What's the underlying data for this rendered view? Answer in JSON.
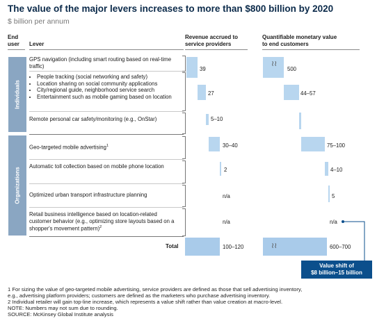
{
  "header": {
    "title": "The value of the major levers increases to more than $800 billion by 2020",
    "subtitle": "$ billion per annum"
  },
  "columns": {
    "end_user": [
      "End",
      "user"
    ],
    "lever": "Lever",
    "revenue": [
      "Revenue accrued to",
      "service providers"
    ],
    "value": [
      "Quantifiable monetary value",
      "to end customers"
    ]
  },
  "groups": {
    "individuals": "Individuals",
    "organizations": "Organizations"
  },
  "levers": {
    "gps": "GPS navigation (including smart routing based on real-time traffic)",
    "bundle": [
      "People tracking (social networking and safety)",
      "Location sharing on social community applications",
      "City/regional guide, neighborhood service search",
      "Entertainment such as mobile gaming based on location"
    ],
    "remote": "Remote personal car safety/monitoring (e.g., OnStar)",
    "geo_prefix": "Geo-targeted mobile advertising",
    "geo_sup": "1",
    "toll": "Automatic toll collection based on mobile phone location",
    "transport": "Optimized urban transport infrastructure planning",
    "retail_prefix": "Retail business intelligence based on location-related customer behavior (e.g., optimizing store layouts based on a shopper's movement pattern)",
    "retail_sup": "2",
    "total": "Total"
  },
  "chart_data": {
    "type": "waterfall",
    "title": "The value of the major levers increases to more than $800 billion by 2020",
    "subtitle": "$ billion per annum",
    "categories": [
      "GPS navigation (including smart routing based on real-time traffic)",
      "People tracking / Location sharing / City guide / Entertainment",
      "Remote personal car safety/monitoring (e.g., OnStar)",
      "Geo-targeted mobile advertising",
      "Automatic toll collection based on mobile phone location",
      "Optimized urban transport infrastructure planning",
      "Retail business intelligence based on location-related customer behavior",
      "Total"
    ],
    "series": [
      {
        "name": "Revenue accrued to service providers",
        "labels": [
          "39",
          "27",
          "5–10",
          "30–40",
          "2",
          "n/a",
          "n/a",
          "100–120"
        ],
        "values": [
          39,
          27,
          7.5,
          35,
          2,
          null,
          null,
          110
        ]
      },
      {
        "name": "Quantifiable monetary value to end customers",
        "labels": [
          "500",
          "44–57",
          "",
          "75–100",
          "4–10",
          "5",
          "n/a",
          "600–700"
        ],
        "values": [
          500,
          50.5,
          1,
          87.5,
          7,
          5,
          null,
          650
        ]
      }
    ],
    "callout": [
      "Value shift of",
      "$8 billion–15 billion"
    ]
  },
  "footnotes": [
    "1  For sizing the value of geo-targeted mobile advertising, service providers are defined as those that sell advertising inventory,",
    "    e.g., advertising platform providers; customers are defined as the marketers who purchase advertising inventory.",
    "2  Individual retailer will gain top-line increase, which represents a value shift rather than value creation at macro-level.",
    "NOTE: Numbers may not sum due to rounding.",
    "SOURCE: McKinsey Global Institute analysis"
  ]
}
